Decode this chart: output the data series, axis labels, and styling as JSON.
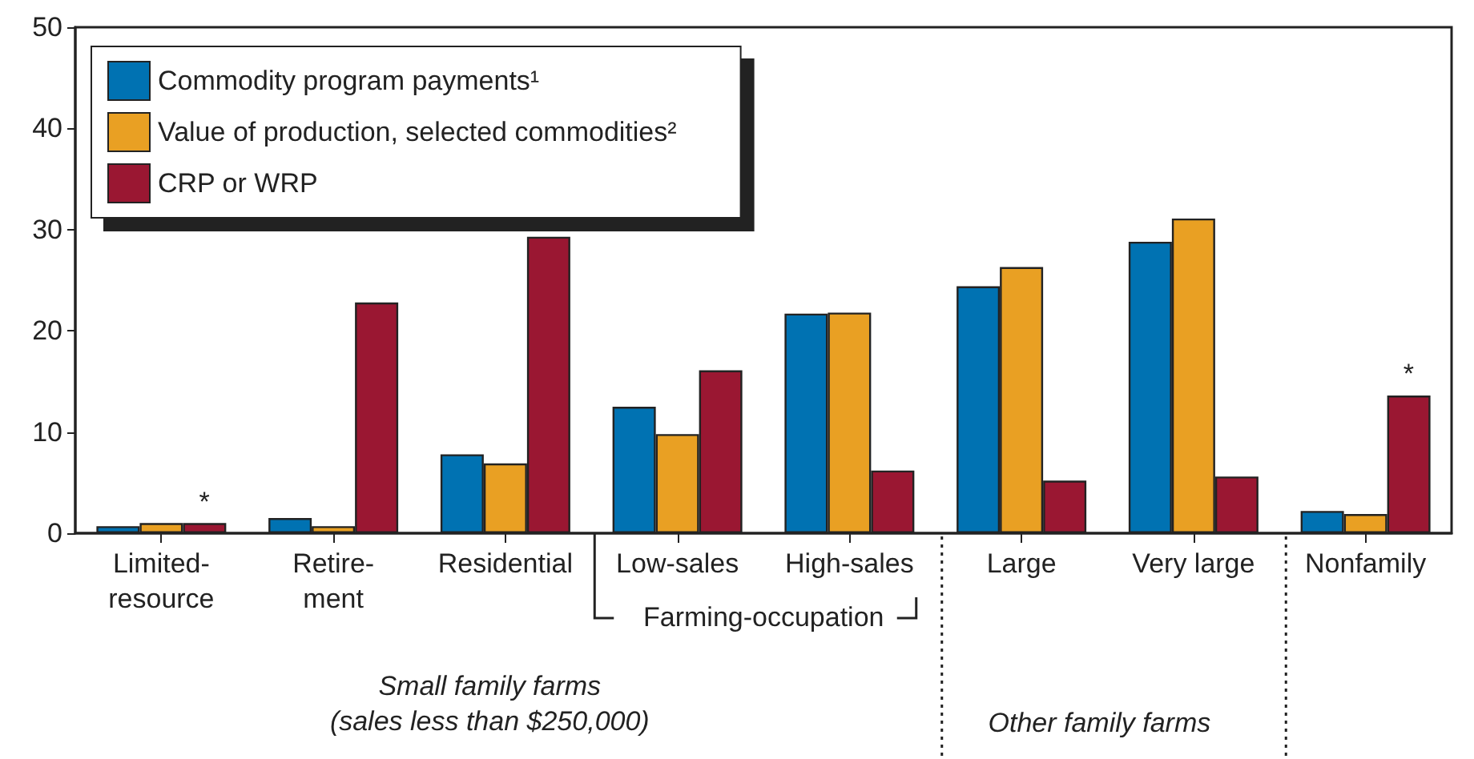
{
  "chart_data": {
    "type": "bar",
    "categories": [
      "Limited-\nresource",
      "Retire-\nment",
      "Residential",
      "Low-sales",
      "High-sales",
      "Large",
      "Very large",
      "Nonfamily"
    ],
    "series": [
      {
        "name": "Commodity program payments¹",
        "color": "#0072b2",
        "values": [
          0.7,
          1.5,
          7.8,
          12.5,
          21.7,
          24.4,
          28.8,
          2.2
        ]
      },
      {
        "name": "Value of production, selected commodities²",
        "color": "#e9a023",
        "values": [
          1.0,
          0.7,
          6.9,
          9.8,
          21.8,
          26.3,
          31.1,
          1.9
        ]
      },
      {
        "name": "CRP or WRP",
        "color": "#9a1732",
        "values": [
          1.0,
          22.8,
          29.3,
          16.1,
          6.2,
          5.2,
          5.6,
          13.6
        ]
      }
    ],
    "ylim": [
      0,
      50
    ],
    "yticks": [
      0,
      10,
      20,
      30,
      40,
      50
    ],
    "grid": false,
    "legend": "top left",
    "annotations": [
      "*",
      "*",
      "Farming-occupation",
      "Small family farms\n(sales less than $250,000)",
      "Other family farms"
    ]
  }
}
